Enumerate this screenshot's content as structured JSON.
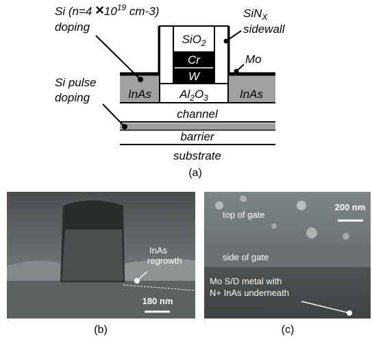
{
  "panel_a": {
    "si_doping": {
      "prefix": "Si (n=4 ",
      "times": "×",
      "base": "10",
      "exp": "19",
      "suffix": " cm-3)",
      "line2": "doping"
    },
    "sin_sidewall": {
      "main": "SiN",
      "sub": "X",
      "line2": "sidewall"
    },
    "sio2": {
      "main": "SiO",
      "sub": "2"
    },
    "cr": "Cr",
    "w": "W",
    "mo": "Mo",
    "inas_left": "InAs",
    "inas_right": "InAs",
    "al2o3": {
      "a": "Al",
      "s1": "2",
      "b": "O",
      "s2": "3"
    },
    "si_pulse": {
      "line1": "Si pulse",
      "line2": "doping"
    },
    "channel": "channel",
    "barrier": "barrier",
    "substrate": "substrate",
    "caption": "(a)"
  },
  "panel_b": {
    "regrowth": {
      "line1": "InAs",
      "line2": "regrowth"
    },
    "scale": "180 nm",
    "caption": "(b)"
  },
  "panel_c": {
    "top": "top of gate",
    "scale": "200 nm",
    "side": "side of gate",
    "metal": {
      "line1": "Mo S/D metal with",
      "line2": "N+ InAs underneath"
    },
    "caption": "(c)"
  }
}
